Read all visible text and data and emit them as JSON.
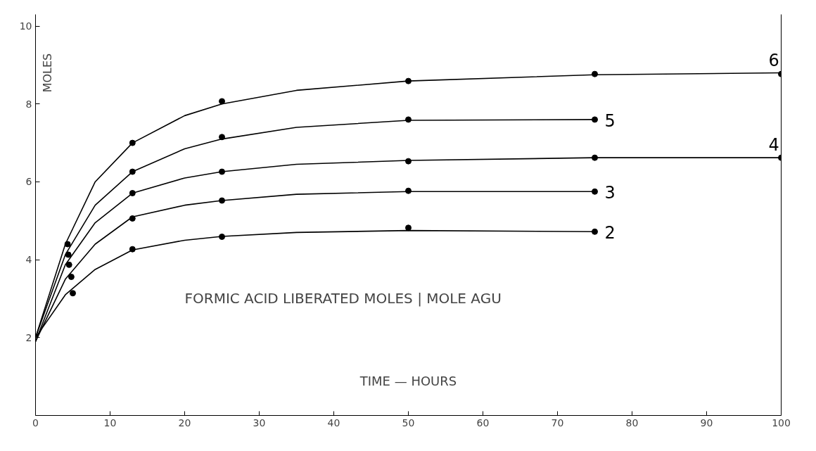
{
  "chart_data": {
    "type": "line",
    "title": "FORMIC ACID LIBERATED MOLES | MOLE AGU",
    "xlabel": "TIME — HOURS",
    "ylabel": "MOLES",
    "xlim": [
      0,
      100
    ],
    "ylim": [
      0,
      10.3
    ],
    "xticks": [
      0,
      10,
      20,
      30,
      40,
      50,
      60,
      70,
      80,
      90,
      100
    ],
    "yticks": [
      2,
      4,
      6,
      8,
      10
    ],
    "grid": false,
    "marker": "none",
    "line_style": "solid",
    "series": [
      {
        "name": "6",
        "color": "#000000",
        "x": [
          0,
          4,
          8,
          13,
          20,
          25,
          35,
          50,
          75,
          100
        ],
        "values": [
          2.0,
          4.4,
          6.0,
          7.0,
          7.7,
          8.0,
          8.35,
          8.59,
          8.75,
          8.8
        ]
      },
      {
        "name": "5",
        "color": "#000000",
        "x": [
          0,
          4,
          8,
          13,
          20,
          25,
          35,
          50,
          75
        ],
        "values": [
          2.0,
          4.13,
          5.4,
          6.26,
          6.85,
          7.1,
          7.4,
          7.58,
          7.6
        ]
      },
      {
        "name": "4",
        "color": "#000000",
        "x": [
          0,
          4,
          8,
          13,
          20,
          25,
          35,
          50,
          75,
          100
        ],
        "values": [
          1.9,
          3.87,
          4.95,
          5.71,
          6.1,
          6.26,
          6.45,
          6.55,
          6.62,
          6.62
        ]
      },
      {
        "name": "3",
        "color": "#000000",
        "x": [
          0,
          4,
          8,
          13,
          20,
          25,
          35,
          50,
          75
        ],
        "values": [
          1.9,
          3.5,
          4.4,
          5.1,
          5.4,
          5.52,
          5.68,
          5.75,
          5.75
        ]
      },
      {
        "name": "2",
        "color": "#000000",
        "x": [
          0,
          4,
          8,
          13,
          20,
          25,
          35,
          50,
          75
        ],
        "values": [
          2.0,
          3.1,
          3.75,
          4.25,
          4.5,
          4.6,
          4.7,
          4.75,
          4.72
        ]
      },
      {
        "type": "scatter",
        "marker": "circle",
        "color": "#000000",
        "x": [
          4.3,
          13,
          25,
          50,
          75,
          100
        ],
        "values": [
          4.4,
          7.0,
          8.07,
          8.59,
          8.77,
          8.77
        ]
      },
      {
        "type": "scatter",
        "marker": "circle",
        "color": "#000000",
        "x": [
          4.4,
          13,
          25,
          50,
          75
        ],
        "values": [
          4.13,
          6.26,
          7.15,
          7.6,
          7.6
        ]
      },
      {
        "type": "scatter",
        "marker": "circle",
        "color": "#000000",
        "x": [
          4.5,
          13,
          25,
          50,
          75,
          100
        ],
        "values": [
          3.87,
          5.71,
          6.26,
          6.53,
          6.62,
          6.62
        ]
      },
      {
        "type": "scatter",
        "marker": "circle",
        "color": "#000000",
        "x": [
          4.8,
          13,
          25,
          50,
          75
        ],
        "values": [
          3.56,
          5.06,
          5.52,
          5.77,
          5.75
        ]
      },
      {
        "type": "scatter",
        "marker": "circle",
        "color": "#000000",
        "x": [
          5,
          13,
          25,
          50,
          75
        ],
        "values": [
          3.14,
          4.27,
          4.59,
          4.82,
          4.72
        ]
      }
    ]
  }
}
